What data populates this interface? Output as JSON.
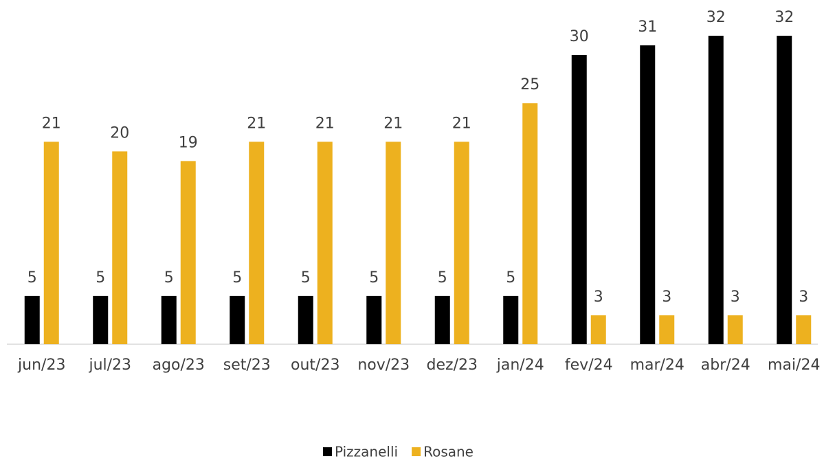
{
  "chart_data": {
    "type": "bar",
    "categories": [
      "jun/23",
      "jul/23",
      "ago/23",
      "set/23",
      "out/23",
      "nov/23",
      "dez/23",
      "jan/24",
      "fev/24",
      "mar/24",
      "abr/24",
      "mai/24"
    ],
    "series": [
      {
        "name": "Pizzanelli",
        "color": "#000000",
        "values": [
          5,
          5,
          5,
          5,
          5,
          5,
          5,
          5,
          30,
          31,
          32,
          32
        ]
      },
      {
        "name": "Rosane",
        "color": "#edb11f",
        "values": [
          21,
          20,
          19,
          21,
          21,
          21,
          21,
          25,
          3,
          3,
          3,
          3
        ]
      }
    ],
    "legend": "bottom"
  }
}
